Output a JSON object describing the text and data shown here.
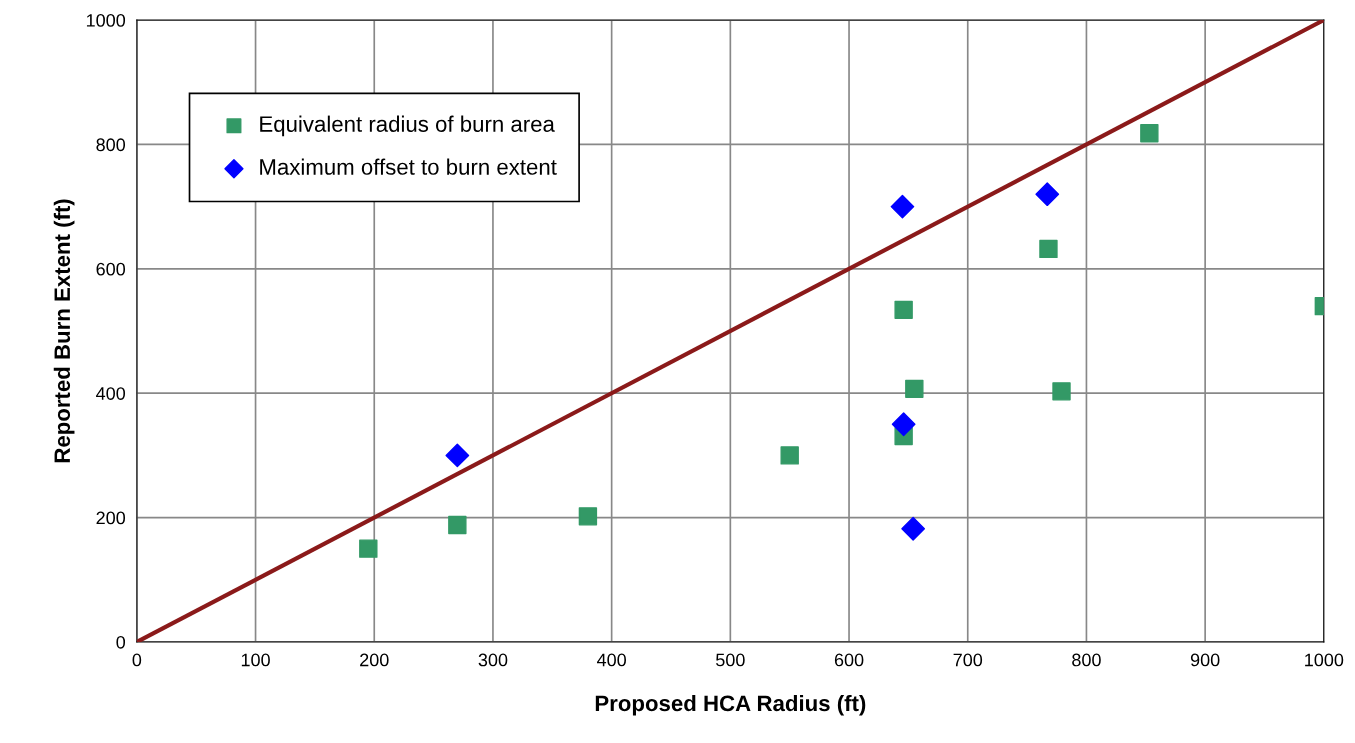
{
  "chart_data": {
    "type": "scatter",
    "xlabel": "Proposed HCA Radius (ft)",
    "ylabel": "Reported Burn Extent (ft)",
    "xlim": [
      0,
      1000
    ],
    "ylim": [
      0,
      1000
    ],
    "xticks": [
      0,
      100,
      200,
      300,
      400,
      500,
      600,
      700,
      800,
      900,
      1000
    ],
    "yticks": [
      0,
      200,
      400,
      600,
      800,
      1000
    ],
    "grid": true,
    "legend": "top left",
    "series": [
      {
        "name": "Equivalent radius of burn area",
        "color": "#339966",
        "marker": "square",
        "x": [
          195,
          270,
          380,
          550,
          646,
          646,
          655,
          768,
          779,
          853,
          1000
        ],
        "values": [
          150,
          188,
          202,
          300,
          534,
          331,
          407,
          632,
          403,
          818,
          540
        ]
      },
      {
        "name": "Maximum offset to burn extent",
        "color": "#0000ff",
        "marker": "diamond",
        "x": [
          270,
          645,
          646,
          654,
          767
        ],
        "values": [
          300,
          700,
          350,
          182,
          720
        ]
      },
      {
        "type": "line",
        "color": "#8b1a1a",
        "marker": "none",
        "x": [
          0,
          1000
        ],
        "values": [
          0,
          1000
        ]
      }
    ]
  }
}
